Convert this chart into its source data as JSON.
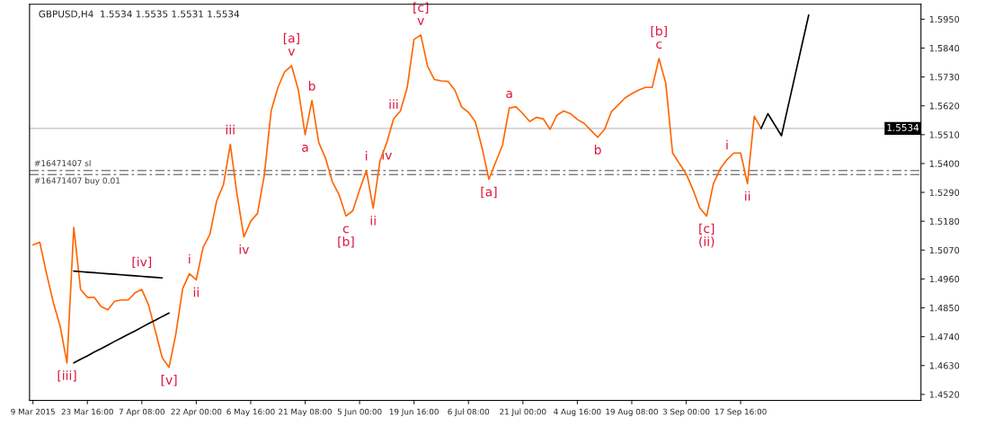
{
  "chart_data": {
    "type": "line",
    "title": "GBPUSD,H4  1.5534 1.5535 1.5531 1.5534",
    "categories": [
      "9 Mar 2015",
      null,
      null,
      null,
      null,
      null,
      null,
      null,
      "23 Mar 16:00",
      null,
      null,
      null,
      null,
      null,
      null,
      null,
      "7 Apr 08:00",
      null,
      null,
      null,
      null,
      null,
      null,
      null,
      "22 Apr 00:00",
      null,
      null,
      null,
      null,
      null,
      null,
      null,
      "6 May 16:00",
      null,
      null,
      null,
      null,
      null,
      null,
      null,
      "21 May 08:00",
      null,
      null,
      null,
      null,
      null,
      null,
      null,
      "5 Jun 00:00",
      null,
      null,
      null,
      null,
      null,
      null,
      null,
      "19 Jun 16:00",
      null,
      null,
      null,
      null,
      null,
      null,
      null,
      "6 Jul 08:00",
      null,
      null,
      null,
      null,
      null,
      null,
      null,
      "21 Jul 00:00",
      null,
      null,
      null,
      null,
      null,
      null,
      null,
      "4 Aug 16:00",
      null,
      null,
      null,
      null,
      null,
      null,
      null,
      "19 Aug 08:00",
      null,
      null,
      null,
      null,
      null,
      null,
      null,
      "3 Sep 00:00",
      null,
      null,
      null,
      null,
      null,
      null,
      null,
      "17 Sep 16:00",
      null,
      null,
      null,
      null,
      null,
      null,
      null,
      null,
      null,
      null,
      null,
      null,
      null,
      null,
      null,
      null,
      null,
      null,
      null,
      null,
      null,
      null,
      null,
      null,
      null,
      null
    ],
    "series": [
      {
        "color": "#ff6600",
        "line_style": "solid",
        "values": [
          1.509,
          1.51,
          1.498,
          1.487,
          1.478,
          1.464,
          1.5156,
          1.492,
          1.489,
          1.489,
          1.4855,
          1.4842,
          1.4875,
          1.488,
          1.488,
          1.4907,
          1.492,
          1.486,
          1.476,
          1.466,
          1.4623,
          1.475,
          1.4923,
          1.498,
          1.4957,
          1.508,
          1.513,
          1.5257,
          1.532,
          1.5473,
          1.528,
          1.512,
          1.518,
          1.521,
          1.5356,
          1.56,
          1.569,
          1.575,
          1.5773,
          1.568,
          1.551,
          1.564,
          1.548,
          1.542,
          1.533,
          1.528,
          1.52,
          1.522,
          1.53,
          1.5373,
          1.523,
          1.541,
          1.548,
          1.557,
          1.56,
          1.569,
          1.5873,
          1.589,
          1.577,
          1.572,
          1.5715,
          1.5713,
          1.568,
          1.5615,
          1.5595,
          1.556,
          1.546,
          1.534,
          1.5405,
          1.547,
          1.5612,
          1.5616,
          1.559,
          1.556,
          1.5576,
          1.557,
          1.553,
          1.5584,
          1.56,
          1.559,
          1.5568,
          1.5553,
          1.5526,
          1.55,
          1.553,
          1.5597,
          1.5623,
          1.565,
          1.5666,
          1.568,
          1.569,
          1.569,
          1.58,
          1.5706,
          1.544,
          1.54,
          1.536,
          1.53,
          1.523,
          1.52,
          1.5323,
          1.538,
          1.5415,
          1.544,
          1.544,
          1.5323,
          1.558,
          1.5534,
          null,
          null,
          null,
          null,
          null,
          null,
          null,
          null,
          null,
          null,
          null,
          null,
          null,
          null,
          null,
          null,
          null,
          null,
          null,
          null,
          null,
          null,
          null
        ],
        "value_labels": [
          null,
          null,
          null,
          null,
          null,
          "[iii]",
          null,
          null,
          null,
          null,
          null,
          null,
          null,
          null,
          null,
          null,
          "[iv]",
          null,
          null,
          null,
          "[v]",
          null,
          null,
          "i",
          "ii",
          null,
          null,
          null,
          null,
          "iii",
          null,
          "iv",
          null,
          null,
          null,
          null,
          null,
          null,
          "[a]\nv",
          null,
          "a",
          "b",
          null,
          null,
          null,
          null,
          "c\n[b]",
          null,
          null,
          "i",
          "ii",
          null,
          "iv",
          "iii",
          null,
          null,
          null,
          "[c]\nv",
          null,
          null,
          null,
          null,
          null,
          null,
          null,
          null,
          null,
          "[a]",
          null,
          null,
          "a",
          null,
          null,
          null,
          null,
          null,
          null,
          null,
          null,
          null,
          null,
          null,
          null,
          "b",
          null,
          null,
          null,
          null,
          null,
          null,
          null,
          null,
          "[b]\nc",
          null,
          null,
          null,
          null,
          null,
          null,
          "[c]\n(ii)",
          null,
          null,
          "i",
          null,
          null,
          "ii",
          null,
          null,
          null,
          null,
          null,
          null,
          null,
          null,
          null,
          null,
          null,
          null,
          null,
          null,
          null,
          null,
          null,
          null,
          null,
          null,
          null,
          null,
          null,
          null,
          null
        ]
      },
      {
        "color": "#000000",
        "line_style": "solid",
        "values": [
          null,
          null,
          null,
          null,
          null,
          null,
          null,
          null,
          null,
          null,
          null,
          null,
          null,
          null,
          null,
          null,
          null,
          null,
          null,
          null,
          null,
          null,
          null,
          null,
          null,
          null,
          null,
          null,
          null,
          null,
          null,
          null,
          null,
          null,
          null,
          null,
          null,
          null,
          null,
          null,
          null,
          null,
          null,
          null,
          null,
          null,
          null,
          null,
          null,
          null,
          null,
          null,
          null,
          null,
          null,
          null,
          null,
          null,
          null,
          null,
          null,
          null,
          null,
          null,
          null,
          null,
          null,
          null,
          null,
          null,
          null,
          null,
          null,
          null,
          null,
          null,
          null,
          null,
          null,
          null,
          null,
          null,
          null,
          null,
          null,
          null,
          null,
          null,
          null,
          null,
          null,
          null,
          null,
          null,
          null,
          null,
          null,
          null,
          null,
          null,
          null,
          null,
          null,
          null,
          null,
          null,
          null,
          1.5534,
          1.559,
          1.5548,
          1.5506,
          1.5621,
          1.5736,
          1.5851,
          1.5966,
          null,
          null,
          null,
          null,
          null,
          null,
          null,
          null,
          null,
          null,
          null,
          null,
          null,
          null,
          null,
          null
        ]
      },
      {
        "color": "#000000",
        "line_style": "solid",
        "values": [
          null,
          null,
          null,
          null,
          null,
          null,
          1.499,
          1.4988,
          1.4986,
          1.4984,
          1.4982,
          1.498,
          1.4978,
          1.4976,
          1.4974,
          1.4972,
          1.497,
          1.4968,
          1.4966,
          1.4964,
          null,
          null,
          null,
          null,
          null,
          null,
          null,
          null,
          null,
          null,
          null,
          null,
          null,
          null,
          null,
          null,
          null,
          null,
          null,
          null,
          null,
          null,
          null,
          null,
          null,
          null,
          null,
          null,
          null,
          null,
          null,
          null,
          null,
          null,
          null,
          null,
          null,
          null,
          null,
          null,
          null,
          null,
          null,
          null,
          null,
          null,
          null,
          null,
          null,
          null,
          null,
          null,
          null,
          null,
          null,
          null,
          null,
          null,
          null,
          null,
          null,
          null,
          null,
          null,
          null,
          null,
          null,
          null,
          null,
          null,
          null,
          null,
          null,
          null,
          null,
          null,
          null,
          null,
          null,
          null,
          null,
          null,
          null,
          null,
          null,
          null,
          null,
          null,
          null,
          null,
          null,
          null,
          null,
          null,
          null,
          null,
          null,
          null,
          null,
          null,
          null,
          null,
          null,
          null,
          null,
          null,
          null,
          null,
          null,
          null,
          null
        ]
      },
      {
        "color": "#000000",
        "line_style": "solid",
        "values": [
          null,
          null,
          null,
          null,
          null,
          null,
          1.464,
          1.4654,
          1.4667,
          1.4681,
          1.4694,
          1.4708,
          1.4722,
          1.4735,
          1.4749,
          1.4762,
          1.4776,
          1.479,
          1.4803,
          1.4817,
          1.483,
          null,
          null,
          null,
          null,
          null,
          null,
          null,
          null,
          null,
          null,
          null,
          null,
          null,
          null,
          null,
          null,
          null,
          null,
          null,
          null,
          null,
          null,
          null,
          null,
          null,
          null,
          null,
          null,
          null,
          null,
          null,
          null,
          null,
          null,
          null,
          null,
          null,
          null,
          null,
          null,
          null,
          null,
          null,
          null,
          null,
          null,
          null,
          null,
          null,
          null,
          null,
          null,
          null,
          null,
          null,
          null,
          null,
          null,
          null,
          null,
          null,
          null,
          null,
          null,
          null,
          null,
          null,
          null,
          null,
          null,
          null,
          null,
          null,
          null,
          null,
          null,
          null,
          null,
          null,
          null,
          null,
          null,
          null,
          null,
          null,
          null,
          null,
          null,
          null,
          null,
          null,
          null,
          null,
          null,
          null,
          null,
          null,
          null,
          null,
          null,
          null,
          null,
          null,
          null,
          null,
          null,
          null,
          null,
          null,
          null
        ]
      }
    ],
    "ylim": [
      1.4497,
      1.6007
    ],
    "yticks": [
      {
        "value": 1.452,
        "label": "1.4520"
      },
      {
        "value": 1.463,
        "label": "1.4630"
      },
      {
        "value": 1.474,
        "label": "1.4740"
      },
      {
        "value": 1.485,
        "label": "1.4850"
      },
      {
        "value": 1.496,
        "label": "1.4960"
      },
      {
        "value": 1.507,
        "label": "1.5070"
      },
      {
        "value": 1.518,
        "label": "1.5180"
      },
      {
        "value": 1.529,
        "label": "1.5290"
      },
      {
        "value": 1.54,
        "label": "1.5400"
      },
      {
        "value": 1.551,
        "label": "1.5510"
      },
      {
        "value": 1.562,
        "label": "1.5620"
      },
      {
        "value": 1.573,
        "label": "1.5730"
      },
      {
        "value": 1.584,
        "label": "1.5840"
      },
      {
        "value": 1.595,
        "label": "1.5950"
      }
    ],
    "ref_lines": [
      {
        "axis": "y",
        "value": 1.5534,
        "label": "1.5534",
        "color": "#c0c0c0",
        "line_style": "solid"
      },
      {
        "axis": "y",
        "value": 1.5374,
        "label": "#16471407 sl",
        "color": "#808080",
        "line_style": "dashed"
      },
      {
        "axis": "y",
        "value": 1.5357,
        "label": "#16471407 buy 0.01",
        "color": "#808080",
        "line_style": "dashed"
      }
    ],
    "grid": false,
    "legend": false
  }
}
